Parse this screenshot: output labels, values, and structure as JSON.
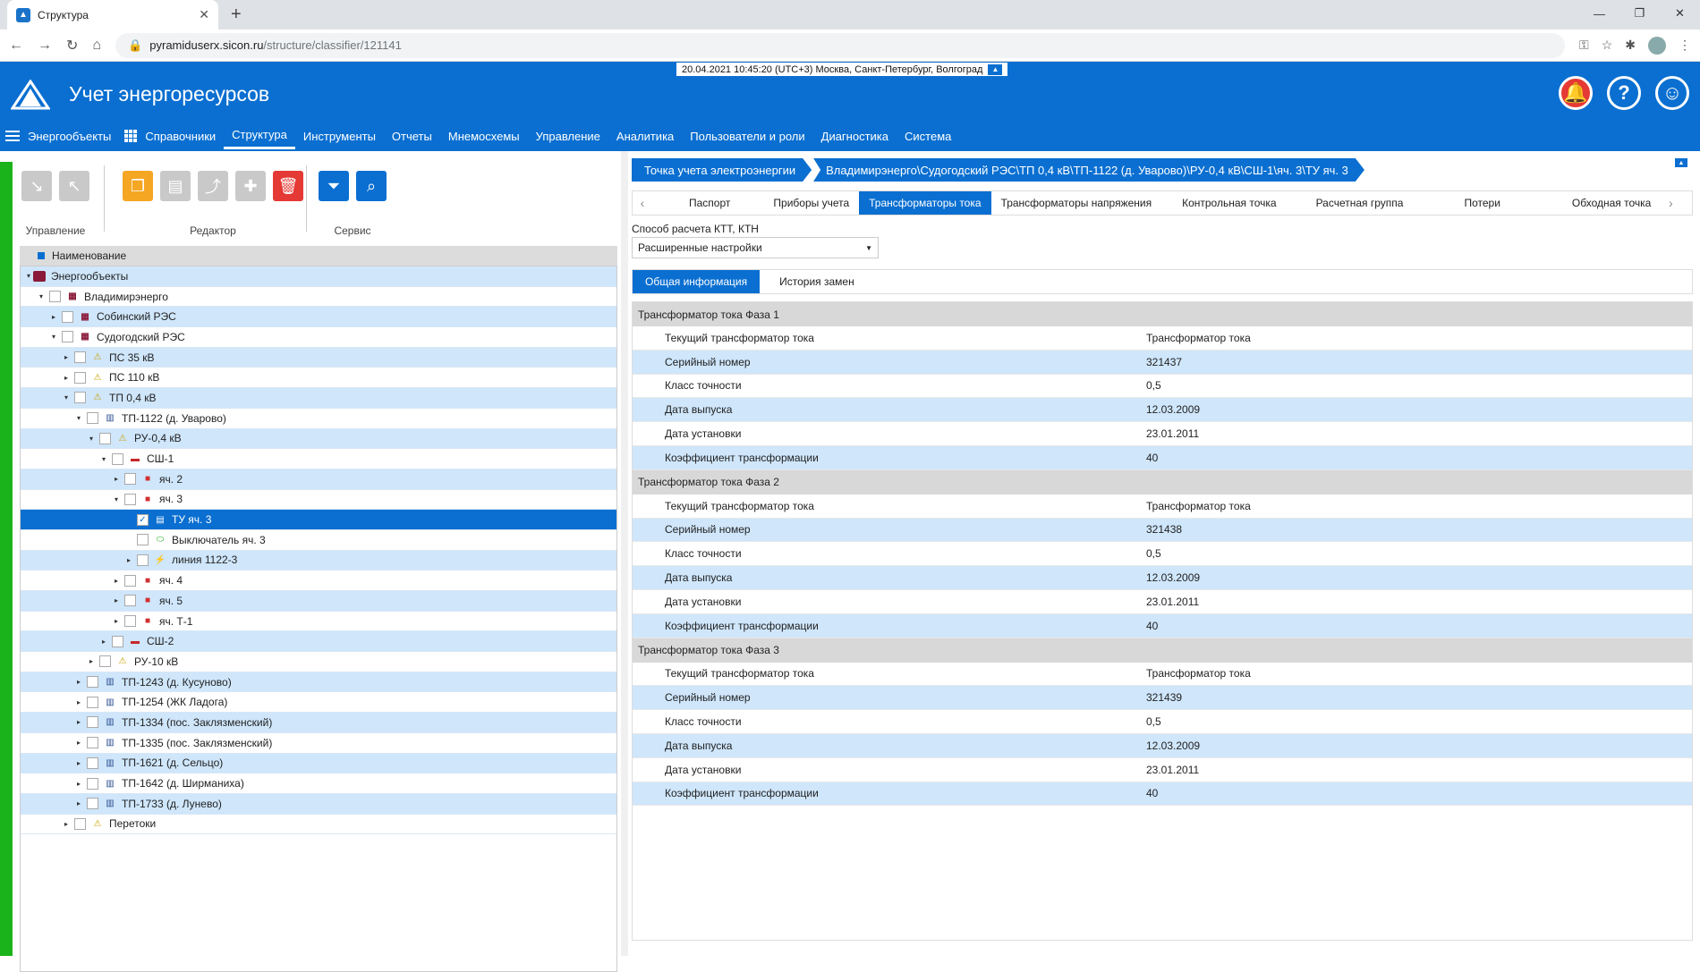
{
  "browser": {
    "tab_title": "Структура",
    "url_host": "pyramiduserx.sicon.ru",
    "url_path": "/structure/classifier/121141"
  },
  "header": {
    "datetime": "20.04.2021 10:45:20 (UTC+3) Москва, Санкт-Петербург, Волгоград",
    "title": "Учет энергоресурсов"
  },
  "menu": [
    "Энергообъекты",
    "Справочники",
    "Структура",
    "Инструменты",
    "Отчеты",
    "Мнемосхемы",
    "Управление",
    "Аналитика",
    "Пользователи и роли",
    "Диагностика",
    "Система"
  ],
  "menu_active": "Структура",
  "toolbar": {
    "group1": "Управление",
    "group2": "Редактор",
    "group3": "Сервис"
  },
  "tree": {
    "header": "Наименование",
    "rows": [
      {
        "label": "Энергообъекты",
        "level": 0,
        "exp": "▾",
        "cb": false,
        "icon": "folder"
      },
      {
        "label": "Владимирэнерго",
        "level": 1,
        "exp": "▾",
        "cb": true,
        "icon": "org"
      },
      {
        "label": "Собинский РЭС",
        "level": 2,
        "exp": "▸",
        "cb": true,
        "icon": "org"
      },
      {
        "label": "Судогодский РЭС",
        "level": 2,
        "exp": "▾",
        "cb": true,
        "icon": "org"
      },
      {
        "label": "ПС 35 кВ",
        "level": 3,
        "exp": "▸",
        "cb": true,
        "icon": "warn"
      },
      {
        "label": "ПС 110 кВ",
        "level": 3,
        "exp": "▸",
        "cb": true,
        "icon": "warn"
      },
      {
        "label": "ТП 0,4 кВ",
        "level": 3,
        "exp": "▾",
        "cb": true,
        "icon": "warn"
      },
      {
        "label": "ТП-1122 (д. Уварово)",
        "level": 4,
        "exp": "▾",
        "cb": true,
        "icon": "sub"
      },
      {
        "label": "РУ-0,4 кВ",
        "level": 5,
        "exp": "▾",
        "cb": true,
        "icon": "warn"
      },
      {
        "label": "СШ-1",
        "level": 6,
        "exp": "▾",
        "cb": true,
        "icon": "bus"
      },
      {
        "label": "яч. 2",
        "level": 7,
        "exp": "▸",
        "cb": true,
        "icon": "cell"
      },
      {
        "label": "яч. 3",
        "level": 7,
        "exp": "▾",
        "cb": true,
        "icon": "cell"
      },
      {
        "label": "ТУ яч. 3",
        "level": 8,
        "exp": "",
        "cb": true,
        "checked": true,
        "icon": "meter",
        "selected": true
      },
      {
        "label": "Выключатель яч. 3",
        "level": 8,
        "exp": "",
        "cb": true,
        "icon": "sw"
      },
      {
        "label": "линия 1122-3",
        "level": 8,
        "exp": "▸",
        "cb": true,
        "icon": "line"
      },
      {
        "label": "яч. 4",
        "level": 7,
        "exp": "▸",
        "cb": true,
        "icon": "cell"
      },
      {
        "label": "яч. 5",
        "level": 7,
        "exp": "▸",
        "cb": true,
        "icon": "cell"
      },
      {
        "label": "яч. Т-1",
        "level": 7,
        "exp": "▸",
        "cb": true,
        "icon": "cell"
      },
      {
        "label": "СШ-2",
        "level": 6,
        "exp": "▸",
        "cb": true,
        "icon": "bus"
      },
      {
        "label": "РУ-10 кВ",
        "level": 5,
        "exp": "▸",
        "cb": true,
        "icon": "warn"
      },
      {
        "label": "ТП-1243 (д. Кусуново)",
        "level": 4,
        "exp": "▸",
        "cb": true,
        "icon": "sub"
      },
      {
        "label": "ТП-1254 (ЖК Ладога)",
        "level": 4,
        "exp": "▸",
        "cb": true,
        "icon": "sub"
      },
      {
        "label": "ТП-1334 (пос. Заклязменский)",
        "level": 4,
        "exp": "▸",
        "cb": true,
        "icon": "sub"
      },
      {
        "label": "ТП-1335 (пос. Заклязменский)",
        "level": 4,
        "exp": "▸",
        "cb": true,
        "icon": "sub"
      },
      {
        "label": "ТП-1621 (д. Сельцо)",
        "level": 4,
        "exp": "▸",
        "cb": true,
        "icon": "sub"
      },
      {
        "label": "ТП-1642 (д. Ширманиха)",
        "level": 4,
        "exp": "▸",
        "cb": true,
        "icon": "sub"
      },
      {
        "label": "ТП-1733 (д. Лунево)",
        "level": 4,
        "exp": "▸",
        "cb": true,
        "icon": "sub"
      },
      {
        "label": "Перетоки",
        "level": 3,
        "exp": "▸",
        "cb": true,
        "icon": "warn"
      }
    ]
  },
  "breadcrumbs": [
    "Точка учета электроэнергии",
    "Владимирэнерго\\Судогодский РЭС\\ТП 0,4 кВ\\ТП-1122 (д. Уварово)\\РУ-0,4 кВ\\СШ-1\\яч. 3\\ТУ яч. 3"
  ],
  "tabs": [
    "Паспорт",
    "Приборы учета",
    "Трансформаторы тока",
    "Трансформаторы напряжения",
    "Контрольная точка",
    "Расчетная группа",
    "Потери",
    "Обходная точка"
  ],
  "tab_active": "Трансформаторы тока",
  "calc": {
    "label": "Способ расчета КТТ, КТН",
    "value": "Расширенные настройки"
  },
  "subtabs": [
    "Общая информация",
    "История замен"
  ],
  "subtab_active": "Общая информация",
  "sections": [
    {
      "title": "Трансформатор тока Фаза 1",
      "rows": [
        [
          "Текущий трансформатор тока",
          "Трансформатор тока"
        ],
        [
          "Серийный номер",
          "321437"
        ],
        [
          "Класс точности",
          "0,5"
        ],
        [
          "Дата выпуска",
          "12.03.2009"
        ],
        [
          "Дата установки",
          "23.01.2011"
        ],
        [
          "Коэффициент трансформации",
          "40"
        ]
      ]
    },
    {
      "title": "Трансформатор тока Фаза 2",
      "rows": [
        [
          "Текущий трансформатор тока",
          "Трансформатор тока"
        ],
        [
          "Серийный номер",
          "321438"
        ],
        [
          "Класс точности",
          "0,5"
        ],
        [
          "Дата выпуска",
          "12.03.2009"
        ],
        [
          "Дата установки",
          "23.01.2011"
        ],
        [
          "Коэффициент трансформации",
          "40"
        ]
      ]
    },
    {
      "title": "Трансформатор тока Фаза 3",
      "rows": [
        [
          "Текущий трансформатор тока",
          "Трансформатор тока"
        ],
        [
          "Серийный номер",
          "321439"
        ],
        [
          "Класс точности",
          "0,5"
        ],
        [
          "Дата выпуска",
          "12.03.2009"
        ],
        [
          "Дата установки",
          "23.01.2011"
        ],
        [
          "Коэффициент трансформации",
          "40"
        ]
      ]
    }
  ]
}
